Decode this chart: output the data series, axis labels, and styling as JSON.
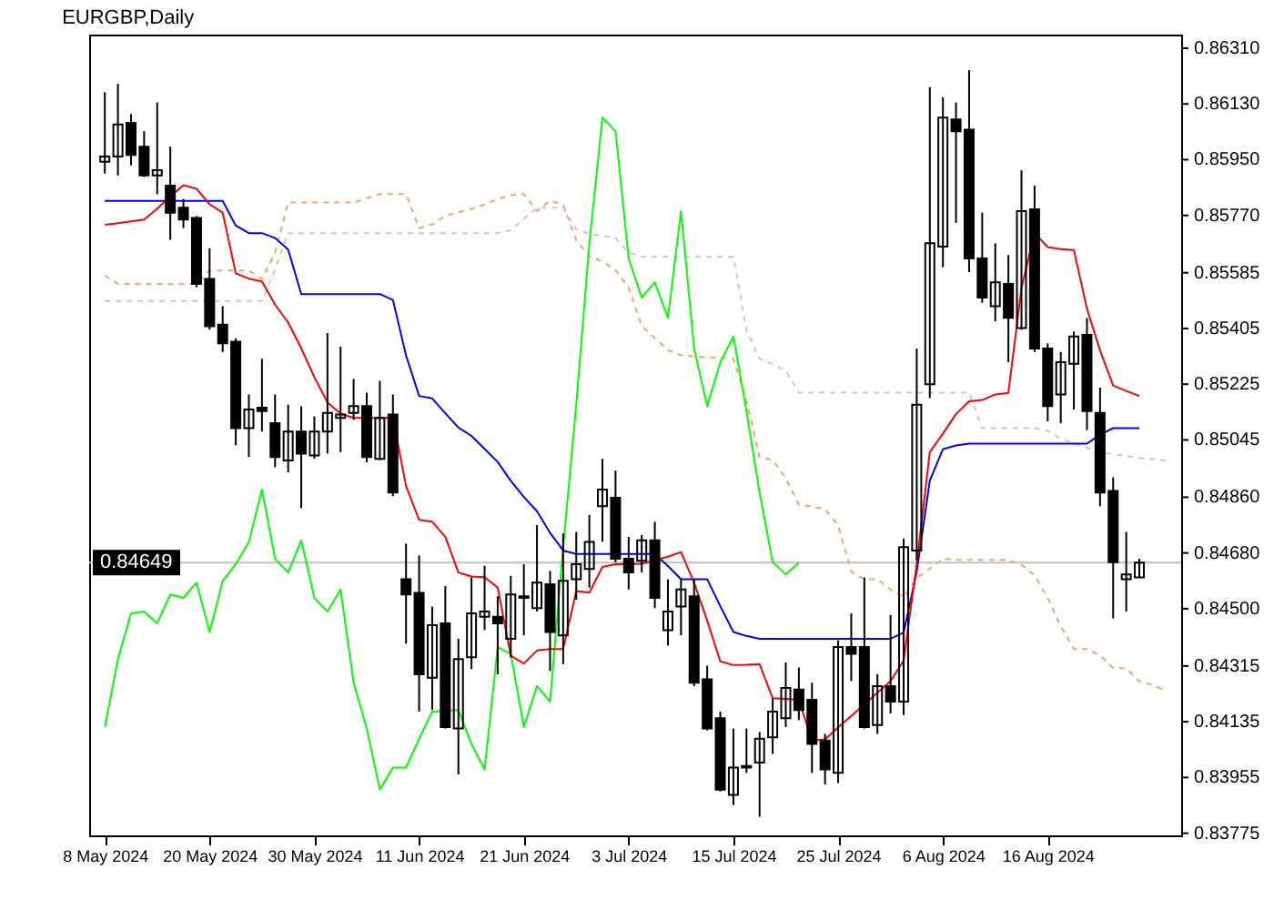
{
  "chart_data": {
    "type": "candlestick",
    "title": "EURGBP,Daily",
    "color": "#000000",
    "grid": false,
    "categories": [
      "8 May 2024",
      null,
      null,
      null,
      null,
      null,
      null,
      null,
      "20 May 2024",
      null,
      null,
      null,
      null,
      null,
      null,
      null,
      "30 May 2024",
      null,
      null,
      null,
      null,
      null,
      null,
      null,
      "11 Jun 2024",
      null,
      null,
      null,
      null,
      null,
      null,
      null,
      "21 Jun 2024",
      null,
      null,
      null,
      null,
      null,
      null,
      null,
      "3 Jul 2024",
      null,
      null,
      null,
      null,
      null,
      null,
      null,
      "15 Jul 2024",
      null,
      null,
      null,
      null,
      null,
      null,
      null,
      "25 Jul 2024",
      null,
      null,
      null,
      null,
      null,
      null,
      null,
      "6 Aug 2024",
      null,
      null,
      null,
      null,
      null,
      null,
      null,
      "16 Aug 2024",
      null,
      null,
      null,
      null,
      null,
      null,
      null,
      null,
      null
    ],
    "ohlc": [
      [
        0.85943,
        0.86168,
        0.85905,
        0.8596
      ],
      [
        0.8596,
        0.86195,
        0.85899,
        0.86064
      ],
      [
        0.86069,
        0.86097,
        0.85932,
        0.85965
      ],
      [
        0.85992,
        0.86042,
        0.85894,
        0.85899
      ],
      [
        0.85899,
        0.86135,
        0.85839,
        0.85916
      ],
      [
        0.85866,
        0.85992,
        0.85691,
        0.85779
      ],
      [
        0.85795,
        0.85823,
        0.85729,
        0.85757
      ],
      [
        0.85762,
        0.85768,
        0.85538,
        0.85549
      ],
      [
        0.85565,
        0.85664,
        0.85401,
        0.85412
      ],
      [
        0.85417,
        0.85477,
        0.85329,
        0.85357
      ],
      [
        0.85362,
        0.85373,
        0.85028,
        0.85083
      ],
      [
        0.85083,
        0.85192,
        0.8499,
        0.85143
      ],
      [
        0.85149,
        0.85307,
        0.85072,
        0.85138
      ],
      [
        0.85099,
        0.85192,
        0.84957,
        0.8499
      ],
      [
        0.84979,
        0.85159,
        0.8494,
        0.85072
      ],
      [
        0.85072,
        0.85154,
        0.84825,
        0.85001
      ],
      [
        0.84995,
        0.85121,
        0.84984,
        0.85072
      ],
      [
        0.85072,
        0.8539,
        0.85001,
        0.85132
      ],
      [
        0.85116,
        0.85346,
        0.85006,
        0.85127
      ],
      [
        0.85132,
        0.85242,
        0.8511,
        0.85154
      ],
      [
        0.85154,
        0.85198,
        0.84973,
        0.8499
      ],
      [
        0.84984,
        0.85236,
        0.84979,
        0.85116
      ],
      [
        0.85127,
        0.85192,
        0.84864,
        0.84875
      ],
      [
        0.84595,
        0.8471,
        0.84387,
        0.84546
      ],
      [
        0.84551,
        0.84672,
        0.84168,
        0.84288
      ],
      [
        0.84277,
        0.84507,
        0.84173,
        0.84447
      ],
      [
        0.84453,
        0.84573,
        0.84113,
        0.84118
      ],
      [
        0.84113,
        0.84403,
        0.83965,
        0.84337
      ],
      [
        0.84343,
        0.84601,
        0.84305,
        0.84485
      ],
      [
        0.84474,
        0.84639,
        0.84431,
        0.84491
      ],
      [
        0.84474,
        0.8454,
        0.84288,
        0.84453
      ],
      [
        0.84403,
        0.84606,
        0.84343,
        0.84546
      ],
      [
        0.8454,
        0.84644,
        0.84414,
        0.84535
      ],
      [
        0.84502,
        0.8477,
        0.84491,
        0.84584
      ],
      [
        0.84579,
        0.84622,
        0.84299,
        0.84425
      ],
      [
        0.84414,
        0.84743,
        0.84321,
        0.8459
      ],
      [
        0.84595,
        0.84748,
        0.84529,
        0.84644
      ],
      [
        0.84628,
        0.84803,
        0.84568,
        0.84716
      ],
      [
        0.84831,
        0.84984,
        0.84716,
        0.84885
      ],
      [
        0.84858,
        0.84946,
        0.8465,
        0.84661
      ],
      [
        0.84661,
        0.84732,
        0.84562,
        0.84617
      ],
      [
        0.84655,
        0.84738,
        0.84617,
        0.84721
      ],
      [
        0.84721,
        0.84781,
        0.84502,
        0.84535
      ],
      [
        0.84431,
        0.84595,
        0.84381,
        0.84491
      ],
      [
        0.84507,
        0.84595,
        0.84414,
        0.84562
      ],
      [
        0.8454,
        0.84595,
        0.8425,
        0.84261
      ],
      [
        0.84272,
        0.84316,
        0.84107,
        0.84113
      ],
      [
        0.84146,
        0.84168,
        0.8391,
        0.83916
      ],
      [
        0.83899,
        0.84113,
        0.83866,
        0.83987
      ],
      [
        0.83992,
        0.84113,
        0.8397,
        0.83987
      ],
      [
        0.84003,
        0.84102,
        0.83828,
        0.8408
      ],
      [
        0.84085,
        0.84211,
        0.84031,
        0.84168
      ],
      [
        0.84146,
        0.84327,
        0.84118,
        0.84244
      ],
      [
        0.84239,
        0.8431,
        0.8414,
        0.84173
      ],
      [
        0.84206,
        0.84261,
        0.8397,
        0.84063
      ],
      [
        0.84074,
        0.84096,
        0.83932,
        0.83981
      ],
      [
        0.8397,
        0.84398,
        0.83937,
        0.84376
      ],
      [
        0.84376,
        0.84485,
        0.84266,
        0.84354
      ],
      [
        0.84376,
        0.84601,
        0.84113,
        0.84118
      ],
      [
        0.84124,
        0.84288,
        0.84096,
        0.8425
      ],
      [
        0.8425,
        0.8448,
        0.84162,
        0.842
      ],
      [
        0.842,
        0.84727,
        0.84157,
        0.84699
      ],
      [
        0.84688,
        0.8534,
        0.84655,
        0.85159
      ],
      [
        0.85225,
        0.86184,
        0.85181,
        0.8568
      ],
      [
        0.85669,
        0.86151,
        0.85603,
        0.86086
      ],
      [
        0.8608,
        0.86135,
        0.85746,
        0.86042
      ],
      [
        0.86047,
        0.86239,
        0.85587,
        0.85631
      ],
      [
        0.85631,
        0.85779,
        0.85488,
        0.85505
      ],
      [
        0.85477,
        0.8568,
        0.85428,
        0.85554
      ],
      [
        0.85549,
        0.85642,
        0.85296,
        0.85439
      ],
      [
        0.85406,
        0.85916,
        0.85401,
        0.85784
      ],
      [
        0.8579,
        0.85866,
        0.85329,
        0.8534
      ],
      [
        0.8534,
        0.85357,
        0.85105,
        0.85154
      ],
      [
        0.85192,
        0.85329,
        0.85099,
        0.85296
      ],
      [
        0.85291,
        0.85395,
        0.85143,
        0.85379
      ],
      [
        0.85384,
        0.85439,
        0.85077,
        0.85138
      ],
      [
        0.85132,
        0.85214,
        0.84831,
        0.84875
      ],
      [
        0.8488,
        0.84924,
        0.84469,
        0.8465
      ],
      [
        0.84595,
        0.84748,
        0.84491,
        0.84611
      ],
      [
        0.84601,
        0.84661,
        0.84601,
        0.84649
      ],
      null,
      null
    ],
    "series": [
      {
        "type": "line",
        "color": "#f4a460",
        "line_style": "dashed",
        "values": [
          0.85576,
          0.85549,
          0.85549,
          0.85549,
          0.85549,
          0.85549,
          0.85549,
          0.85549,
          0.85592,
          0.85592,
          0.85592,
          0.85592,
          0.85565,
          0.8565,
          0.85812,
          0.85812,
          0.85812,
          0.85812,
          0.85812,
          0.85812,
          0.85825,
          0.85839,
          0.85839,
          0.85839,
          0.85729,
          0.85741,
          0.85769,
          0.8578,
          0.85791,
          0.85805,
          0.85823,
          0.85835,
          0.85839,
          0.85784,
          0.85818,
          0.85804,
          0.8569,
          0.85638,
          0.85622,
          0.85593,
          0.85537,
          0.85413,
          0.85374,
          0.85335,
          0.85318,
          0.85315,
          0.85312,
          0.8531,
          0.85307,
          0.85171,
          0.8499,
          0.8498,
          0.84921,
          0.84836,
          0.8483,
          0.84821,
          0.8477,
          0.8462,
          0.84595,
          0.84595,
          0.84562,
          0.84537,
          0.84599,
          0.84629,
          0.84661,
          0.84658,
          0.84658,
          0.84658,
          0.84658,
          0.84658,
          0.84642,
          0.84608,
          0.84535,
          0.84443,
          0.8437,
          0.8437,
          0.84349,
          0.84309,
          0.84307,
          0.84266,
          0.84254,
          0.84235
        ]
      },
      {
        "type": "line",
        "color": "#d8bfd8",
        "line_style": "dashed",
        "values": [
          0.85494,
          0.85494,
          0.85494,
          0.85494,
          0.85494,
          0.85494,
          0.85494,
          0.85494,
          0.85494,
          0.85494,
          0.85494,
          0.85494,
          0.85494,
          0.85596,
          0.85713,
          0.85713,
          0.85713,
          0.85713,
          0.85713,
          0.85713,
          0.85713,
          0.85713,
          0.85713,
          0.85713,
          0.85713,
          0.85713,
          0.85713,
          0.85713,
          0.85713,
          0.85713,
          0.85713,
          0.85722,
          0.85759,
          0.85795,
          0.85795,
          0.85795,
          0.85725,
          0.85711,
          0.85704,
          0.85697,
          0.8565,
          0.85636,
          0.85636,
          0.85636,
          0.85636,
          0.85636,
          0.85636,
          0.85636,
          0.85636,
          0.85399,
          0.85307,
          0.8529,
          0.85268,
          0.85198,
          0.85198,
          0.85198,
          0.85198,
          0.85198,
          0.85198,
          0.85198,
          0.85198,
          0.85198,
          0.85198,
          0.85198,
          0.85198,
          0.85198,
          0.85198,
          0.85083,
          0.85083,
          0.85083,
          0.85083,
          0.85083,
          0.85075,
          0.85049,
          0.85035,
          0.8502,
          0.85005,
          0.84999,
          0.84993,
          0.84987,
          0.84983,
          0.84979
        ]
      },
      {
        "type": "line",
        "color": "#00ff00",
        "line_style": "solid",
        "values": [
          0.84118,
          0.84337,
          0.84485,
          0.84491,
          0.84453,
          0.84546,
          0.84535,
          0.84584,
          0.84425,
          0.8459,
          0.84644,
          0.84716,
          0.84885,
          0.84661,
          0.84617,
          0.84721,
          0.84535,
          0.84491,
          0.84562,
          0.84261,
          0.84113,
          0.83916,
          0.83987,
          0.83987,
          0.8408,
          0.84168,
          null,
          0.84173,
          0.84063,
          0.83981,
          0.84376,
          0.84354,
          0.84118,
          0.8425,
          0.842,
          0.84699,
          0.85159,
          0.8568,
          0.86086,
          0.86042,
          0.85631,
          0.85505,
          0.85554,
          0.85439,
          0.85784,
          0.8534,
          0.85154,
          0.85296,
          0.85379,
          0.85138,
          0.84875,
          0.8465,
          0.84611,
          0.84649,
          null,
          null,
          null,
          null,
          null,
          null,
          null,
          null,
          null,
          null,
          null,
          null,
          null,
          null,
          null,
          null,
          null,
          null,
          null,
          null,
          null,
          null,
          null,
          null,
          null,
          null,
          null,
          null
        ]
      },
      {
        "type": "line",
        "color": "#0000ff",
        "line_style": "solid",
        "values": [
          0.85817,
          0.85817,
          0.85817,
          0.85817,
          0.85817,
          0.85817,
          0.85817,
          0.85817,
          0.85817,
          0.85817,
          0.85737,
          0.85713,
          0.85713,
          0.85697,
          0.8566,
          0.85516,
          0.85516,
          0.85516,
          0.85516,
          0.85516,
          0.85516,
          0.85516,
          0.85497,
          0.85318,
          0.85187,
          0.85179,
          0.85131,
          0.85085,
          0.85058,
          0.85016,
          0.84974,
          0.84913,
          0.84861,
          0.84815,
          0.84745,
          0.84688,
          0.84677,
          0.84677,
          0.84677,
          0.84677,
          0.84677,
          0.84677,
          0.84677,
          0.84638,
          0.84595,
          0.84595,
          0.84595,
          0.84508,
          0.84425,
          0.84412,
          0.84403,
          0.84403,
          0.84403,
          0.84403,
          0.84403,
          0.84403,
          0.84403,
          0.84403,
          0.84403,
          0.84403,
          0.84403,
          0.84423,
          0.84619,
          0.84914,
          0.85015,
          0.85027,
          0.85033,
          0.85033,
          0.85033,
          0.85033,
          0.85033,
          0.85033,
          0.85033,
          0.85033,
          0.85033,
          0.85033,
          0.85062,
          0.85083,
          0.85083,
          0.85083,
          null,
          null
        ]
      },
      {
        "type": "line",
        "color": "#ff0000",
        "line_style": "solid",
        "values": [
          0.8574,
          0.85745,
          0.85751,
          0.85757,
          0.85792,
          0.85831,
          0.85868,
          0.85856,
          0.85806,
          0.85779,
          0.85583,
          0.85566,
          0.85557,
          0.85482,
          0.85424,
          0.85341,
          0.85248,
          0.85166,
          0.8513,
          0.85116,
          0.85116,
          0.85116,
          0.85116,
          0.84896,
          0.84787,
          0.84781,
          0.84732,
          0.84617,
          0.84604,
          0.84602,
          0.84568,
          0.84348,
          0.84323,
          0.84365,
          0.8437,
          0.8437,
          0.84557,
          0.84552,
          0.84635,
          0.84644,
          0.84644,
          0.84645,
          0.84656,
          0.84668,
          0.84683,
          0.84584,
          0.84461,
          0.8433,
          0.84318,
          0.84319,
          0.84321,
          0.84211,
          0.84209,
          0.84206,
          0.84074,
          0.84078,
          0.84117,
          0.84154,
          0.84191,
          0.84229,
          0.84266,
          0.84332,
          0.84644,
          0.85006,
          0.85065,
          0.85129,
          0.8517,
          0.85174,
          0.85192,
          0.85197,
          0.85536,
          0.85713,
          0.85668,
          0.85661,
          0.85658,
          0.85469,
          0.85334,
          0.85221,
          0.85203,
          0.85187,
          null,
          null
        ]
      }
    ],
    "ylim": [
      0.83768,
      0.86354
    ],
    "yticks": [
      {
        "value": 0.8631,
        "label": "0.86310"
      },
      {
        "value": 0.8613,
        "label": "0.86130"
      },
      {
        "value": 0.8595,
        "label": "0.85950"
      },
      {
        "value": 0.8577,
        "label": "0.85770"
      },
      0.85585,
      0.85405,
      0.85225,
      0.85045,
      {
        "value": 0.8486,
        "label": "0.84860"
      },
      {
        "value": 0.8468,
        "label": "0.84680"
      },
      {
        "value": 0.845,
        "label": "0.84500"
      },
      0.84315,
      0.84135,
      0.83955,
      0.83775
    ],
    "ref_lines": [
      {
        "axis": "y",
        "value": 0.84649,
        "label": "0.84649",
        "color": "#c0c0c0"
      }
    ]
  }
}
